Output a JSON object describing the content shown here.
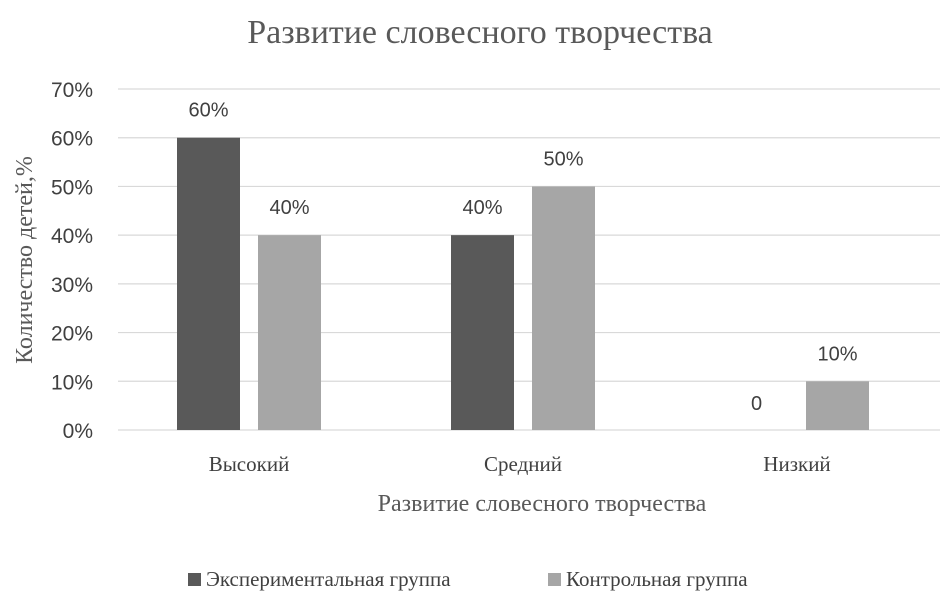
{
  "chart_data": {
    "type": "bar",
    "title": "Развитие словесного творчества",
    "xlabel": "Развитие словесного творчества",
    "ylabel": "Количество детей,%",
    "categories": [
      "Высокий",
      "Средний",
      "Низкий"
    ],
    "y_ticks": [
      "0%",
      "10%",
      "20%",
      "30%",
      "40%",
      "50%",
      "60%",
      "70%"
    ],
    "ylim": [
      0,
      70
    ],
    "grid": true,
    "legend_position": "bottom",
    "series": [
      {
        "name": "Экспериментальная группа",
        "values": [
          60,
          40,
          0
        ],
        "data_labels": [
          "60%",
          "40%",
          "0"
        ],
        "color": "#595959"
      },
      {
        "name": "Контрольная группа",
        "values": [
          40,
          50,
          10
        ],
        "data_labels": [
          "40%",
          "50%",
          "10%"
        ],
        "color": "#a6a6a6"
      }
    ],
    "gridline_color": "#d9d9d9",
    "text_color": "#404040"
  }
}
